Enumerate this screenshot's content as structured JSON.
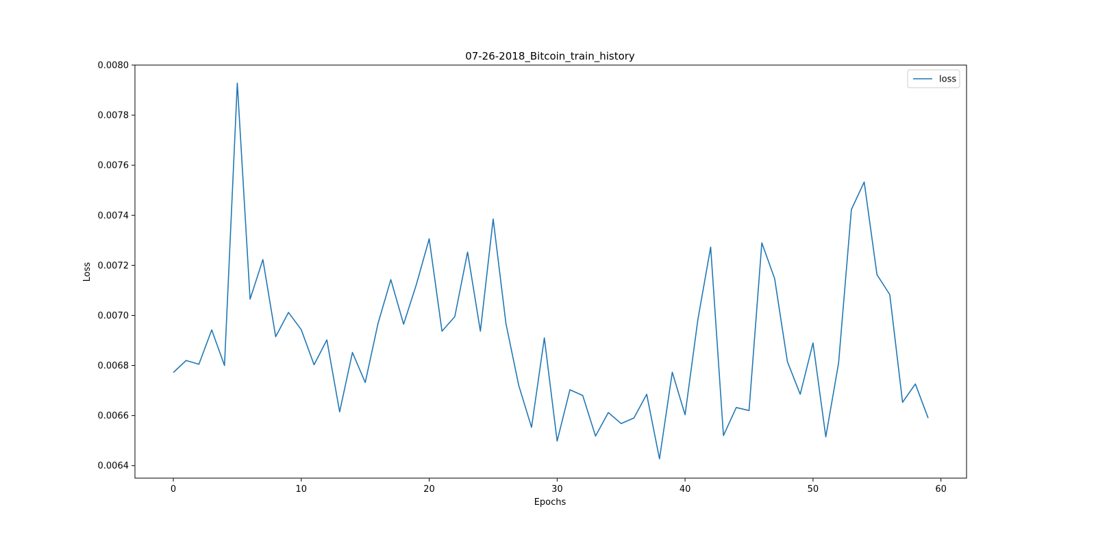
{
  "chart_data": {
    "type": "line",
    "title": "07-26-2018_Bitcoin_train_history",
    "xlabel": "Epochs",
    "ylabel": "Loss",
    "xlim": [
      -3,
      62
    ],
    "ylim": [
      0.00635,
      0.008
    ],
    "x_ticks": [
      0,
      10,
      20,
      30,
      40,
      50,
      60
    ],
    "x_tick_labels": [
      "0",
      "10",
      "20",
      "30",
      "40",
      "50",
      "60"
    ],
    "y_ticks": [
      0.0064,
      0.0066,
      0.0068,
      0.007,
      0.0072,
      0.0074,
      0.0076,
      0.0078,
      0.008
    ],
    "y_tick_labels": [
      "0.0064",
      "0.0066",
      "0.0068",
      "0.0070",
      "0.0072",
      "0.0074",
      "0.0076",
      "0.0078",
      "0.0080"
    ],
    "grid": false,
    "legend_position": "top-right",
    "colors": {
      "loss": "#1f77b4"
    },
    "series": [
      {
        "name": "loss",
        "x": [
          0,
          1,
          2,
          3,
          4,
          5,
          6,
          7,
          8,
          9,
          10,
          11,
          12,
          13,
          14,
          15,
          16,
          17,
          18,
          19,
          20,
          21,
          22,
          23,
          24,
          25,
          26,
          27,
          28,
          29,
          30,
          31,
          32,
          33,
          34,
          35,
          36,
          37,
          38,
          39,
          40,
          41,
          42,
          43,
          44,
          45,
          46,
          47,
          48,
          49,
          50,
          51,
          52,
          53,
          54,
          55,
          56,
          57,
          58,
          59
        ],
        "values": [
          0.006772,
          0.00682,
          0.006805,
          0.006942,
          0.0068,
          0.007928,
          0.007065,
          0.007223,
          0.006915,
          0.007012,
          0.006943,
          0.006803,
          0.006902,
          0.006615,
          0.006852,
          0.006732,
          0.006968,
          0.007143,
          0.006965,
          0.007124,
          0.007306,
          0.006937,
          0.006995,
          0.007253,
          0.006937,
          0.007385,
          0.006967,
          0.00672,
          0.006553,
          0.00691,
          0.006498,
          0.006703,
          0.00668,
          0.006518,
          0.006612,
          0.006568,
          0.00659,
          0.006685,
          0.006427,
          0.006773,
          0.006603,
          0.006983,
          0.007273,
          0.00652,
          0.006632,
          0.00662,
          0.00729,
          0.007147,
          0.006815,
          0.006685,
          0.00689,
          0.006515,
          0.00681,
          0.007423,
          0.007533,
          0.007163,
          0.007083,
          0.006653,
          0.006726,
          0.00659
        ]
      }
    ]
  }
}
